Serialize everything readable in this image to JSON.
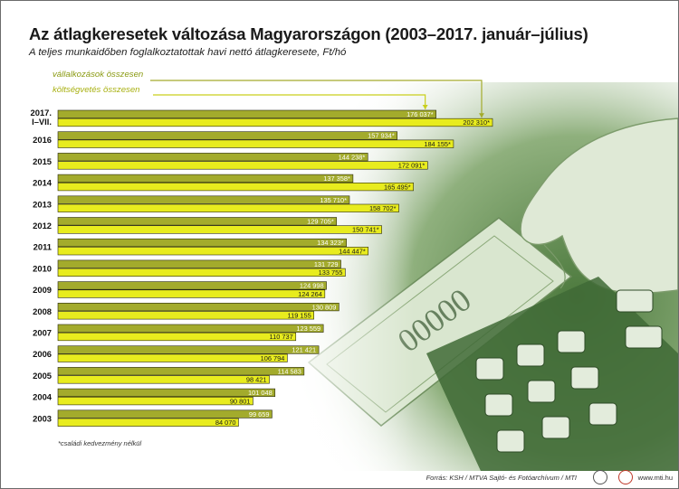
{
  "chart_data": {
    "type": "bar",
    "orientation": "horizontal",
    "title": "Az átlagkeresetek változása Magyarországon (2003–2017. január–július)",
    "subtitle": "A teljes munkaidőben foglalkoztatottak havi nettó átlagkeresete, Ft/hó",
    "categories": [
      "2017. I–VII.",
      "2016",
      "2015",
      "2014",
      "2013",
      "2012",
      "2011",
      "2010",
      "2009",
      "2008",
      "2007",
      "2006",
      "2005",
      "2004",
      "2003"
    ],
    "series": [
      {
        "name": "vállalkozások összesen",
        "color": "#a3ab2c",
        "values": [
          176037,
          157934,
          144238,
          137358,
          135710,
          129705,
          134323,
          131729,
          124998,
          130809,
          123559,
          121421,
          114583,
          101048,
          99659
        ],
        "labels": [
          "176 037*",
          "157 934*",
          "144 238*",
          "137 358*",
          "135 710*",
          "129 705*",
          "134 323*",
          "131 729",
          "124 998",
          "130 809",
          "123 559",
          "121 421",
          "114 583",
          "101 048",
          "99 659"
        ]
      },
      {
        "name": "költségvetés összesen",
        "color": "#e8ec1e",
        "values": [
          202310,
          184155,
          172091,
          165495,
          158702,
          150741,
          144447,
          133755,
          124264,
          119155,
          110737,
          106794,
          98421,
          90801,
          84070
        ],
        "labels": [
          "202 310*",
          "184 155*",
          "172 091*",
          "165 495*",
          "158 702*",
          "150 741*",
          "144 447*",
          "133 755",
          "124 264",
          "119 155",
          "110 737",
          "106 794",
          "98 421",
          "90 801",
          "84 070"
        ]
      }
    ],
    "footnote": "*családi kedvezmény nélkül",
    "legend_position": "top-left",
    "grid": false,
    "xlim": [
      0,
      202310
    ]
  },
  "footer": {
    "source": "Forrás: KSH / MTVA Sajtó- és Fotóarchívum / MTI",
    "site": "www.mti.hu",
    "logo_1_icon": "mtva-logo-icon",
    "logo_2_icon": "mti-logo-icon"
  },
  "background": {
    "photo_subject": "hand-withdrawing-banknotes-at-atm"
  }
}
